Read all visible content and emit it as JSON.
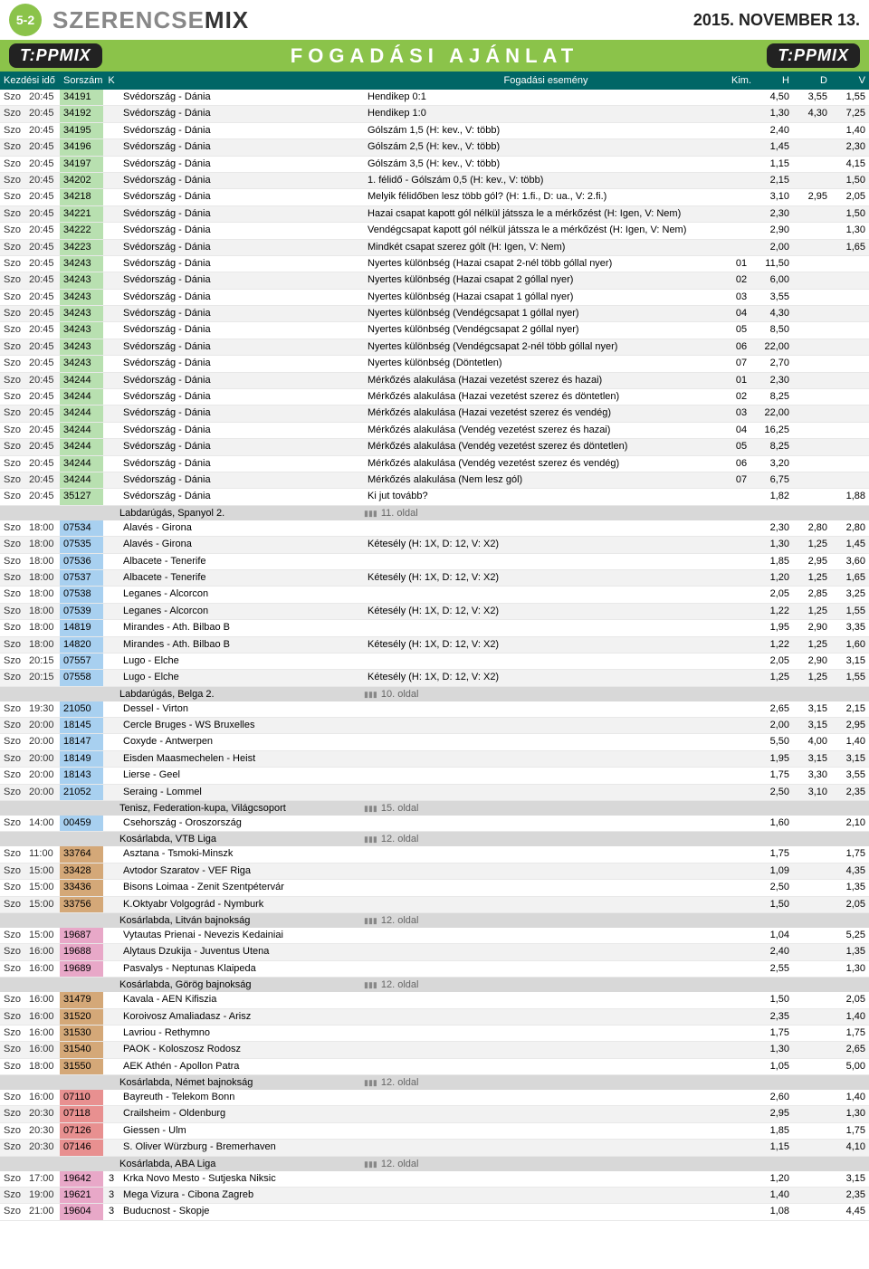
{
  "page_badge": "5-2",
  "logo_sz": "SZERENCSE",
  "logo_mix": "MIX",
  "date": "2015. NOVEMBER 13.",
  "tippmix": "T:PPMIX",
  "banner": "FOGADÁSI AJÁNLAT",
  "hdr": {
    "kezd": "Kezdési idő",
    "sorszam": "Sorszám",
    "k": "K",
    "esemeny": "Fogadási esemény",
    "kim": "Kim.",
    "h": "H",
    "d": "D",
    "v": "V"
  },
  "rows": [
    {
      "t": "d",
      "day": "Szo",
      "time": "20:45",
      "code": "34191",
      "cc": "g",
      "match": "Svédország - Dánia",
      "event": "Hendikep 0:1",
      "kim": "",
      "h": "4,50",
      "dv": "3,55",
      "v": "1,55"
    },
    {
      "t": "d",
      "day": "Szo",
      "time": "20:45",
      "code": "34192",
      "cc": "g",
      "match": "Svédország - Dánia",
      "event": "Hendikep 1:0",
      "kim": "",
      "h": "1,30",
      "dv": "4,30",
      "v": "7,25"
    },
    {
      "t": "d",
      "day": "Szo",
      "time": "20:45",
      "code": "34195",
      "cc": "g",
      "match": "Svédország - Dánia",
      "event": "Gólszám 1,5 (H: kev., V: több)",
      "kim": "",
      "h": "2,40",
      "dv": "",
      "v": "1,40"
    },
    {
      "t": "d",
      "day": "Szo",
      "time": "20:45",
      "code": "34196",
      "cc": "g",
      "match": "Svédország - Dánia",
      "event": "Gólszám 2,5 (H: kev., V: több)",
      "kim": "",
      "h": "1,45",
      "dv": "",
      "v": "2,30"
    },
    {
      "t": "d",
      "day": "Szo",
      "time": "20:45",
      "code": "34197",
      "cc": "g",
      "match": "Svédország - Dánia",
      "event": "Gólszám 3,5 (H: kev., V: több)",
      "kim": "",
      "h": "1,15",
      "dv": "",
      "v": "4,15"
    },
    {
      "t": "d",
      "day": "Szo",
      "time": "20:45",
      "code": "34202",
      "cc": "g",
      "match": "Svédország - Dánia",
      "event": "1. félidő - Gólszám 0,5 (H: kev., V: több)",
      "kim": "",
      "h": "2,15",
      "dv": "",
      "v": "1,50"
    },
    {
      "t": "d",
      "day": "Szo",
      "time": "20:45",
      "code": "34218",
      "cc": "g",
      "match": "Svédország - Dánia",
      "event": "Melyik félidőben lesz több gól? (H: 1.fi., D: ua., V: 2.fi.)",
      "kim": "",
      "h": "3,10",
      "dv": "2,95",
      "v": "2,05"
    },
    {
      "t": "d",
      "day": "Szo",
      "time": "20:45",
      "code": "34221",
      "cc": "g",
      "match": "Svédország - Dánia",
      "event": "Hazai csapat kapott gól nélkül játssza le a mérkőzést (H: Igen, V: Nem)",
      "kim": "",
      "h": "2,30",
      "dv": "",
      "v": "1,50"
    },
    {
      "t": "d",
      "day": "Szo",
      "time": "20:45",
      "code": "34222",
      "cc": "g",
      "match": "Svédország - Dánia",
      "event": "Vendégcsapat kapott gól nélkül játssza le a mérkőzést (H: Igen, V: Nem)",
      "kim": "",
      "h": "2,90",
      "dv": "",
      "v": "1,30"
    },
    {
      "t": "d",
      "day": "Szo",
      "time": "20:45",
      "code": "34223",
      "cc": "g",
      "match": "Svédország - Dánia",
      "event": "Mindkét csapat szerez gólt (H: Igen, V: Nem)",
      "kim": "",
      "h": "2,00",
      "dv": "",
      "v": "1,65"
    },
    {
      "t": "d",
      "day": "Szo",
      "time": "20:45",
      "code": "34243",
      "cc": "g",
      "match": "Svédország - Dánia",
      "event": "Nyertes különbség (Hazai csapat 2-nél több góllal nyer)",
      "kim": "01",
      "h": "11,50",
      "dv": "",
      "v": ""
    },
    {
      "t": "d",
      "day": "Szo",
      "time": "20:45",
      "code": "34243",
      "cc": "g",
      "match": "Svédország - Dánia",
      "event": "Nyertes különbség (Hazai csapat 2 góllal nyer)",
      "kim": "02",
      "h": "6,00",
      "dv": "",
      "v": ""
    },
    {
      "t": "d",
      "day": "Szo",
      "time": "20:45",
      "code": "34243",
      "cc": "g",
      "match": "Svédország - Dánia",
      "event": "Nyertes különbség (Hazai csapat 1 góllal nyer)",
      "kim": "03",
      "h": "3,55",
      "dv": "",
      "v": ""
    },
    {
      "t": "d",
      "day": "Szo",
      "time": "20:45",
      "code": "34243",
      "cc": "g",
      "match": "Svédország - Dánia",
      "event": "Nyertes különbség (Vendégcsapat 1 góllal nyer)",
      "kim": "04",
      "h": "4,30",
      "dv": "",
      "v": ""
    },
    {
      "t": "d",
      "day": "Szo",
      "time": "20:45",
      "code": "34243",
      "cc": "g",
      "match": "Svédország - Dánia",
      "event": "Nyertes különbség (Vendégcsapat 2 góllal nyer)",
      "kim": "05",
      "h": "8,50",
      "dv": "",
      "v": ""
    },
    {
      "t": "d",
      "day": "Szo",
      "time": "20:45",
      "code": "34243",
      "cc": "g",
      "match": "Svédország - Dánia",
      "event": "Nyertes különbség (Vendégcsapat 2-nél több góllal nyer)",
      "kim": "06",
      "h": "22,00",
      "dv": "",
      "v": ""
    },
    {
      "t": "d",
      "day": "Szo",
      "time": "20:45",
      "code": "34243",
      "cc": "g",
      "match": "Svédország - Dánia",
      "event": "Nyertes különbség (Döntetlen)",
      "kim": "07",
      "h": "2,70",
      "dv": "",
      "v": ""
    },
    {
      "t": "d",
      "day": "Szo",
      "time": "20:45",
      "code": "34244",
      "cc": "g",
      "match": "Svédország - Dánia",
      "event": "Mérkőzés alakulása (Hazai vezetést szerez és hazai)",
      "kim": "01",
      "h": "2,30",
      "dv": "",
      "v": ""
    },
    {
      "t": "d",
      "day": "Szo",
      "time": "20:45",
      "code": "34244",
      "cc": "g",
      "match": "Svédország - Dánia",
      "event": "Mérkőzés alakulása (Hazai vezetést szerez és döntetlen)",
      "kim": "02",
      "h": "8,25",
      "dv": "",
      "v": ""
    },
    {
      "t": "d",
      "day": "Szo",
      "time": "20:45",
      "code": "34244",
      "cc": "g",
      "match": "Svédország - Dánia",
      "event": "Mérkőzés alakulása (Hazai vezetést szerez és vendég)",
      "kim": "03",
      "h": "22,00",
      "dv": "",
      "v": ""
    },
    {
      "t": "d",
      "day": "Szo",
      "time": "20:45",
      "code": "34244",
      "cc": "g",
      "match": "Svédország - Dánia",
      "event": "Mérkőzés alakulása (Vendég vezetést szerez és hazai)",
      "kim": "04",
      "h": "16,25",
      "dv": "",
      "v": ""
    },
    {
      "t": "d",
      "day": "Szo",
      "time": "20:45",
      "code": "34244",
      "cc": "g",
      "match": "Svédország - Dánia",
      "event": "Mérkőzés alakulása (Vendég vezetést szerez és döntetlen)",
      "kim": "05",
      "h": "8,25",
      "dv": "",
      "v": ""
    },
    {
      "t": "d",
      "day": "Szo",
      "time": "20:45",
      "code": "34244",
      "cc": "g",
      "match": "Svédország - Dánia",
      "event": "Mérkőzés alakulása (Vendég vezetést szerez és vendég)",
      "kim": "06",
      "h": "3,20",
      "dv": "",
      "v": ""
    },
    {
      "t": "d",
      "day": "Szo",
      "time": "20:45",
      "code": "34244",
      "cc": "g",
      "match": "Svédország - Dánia",
      "event": "Mérkőzés alakulása (Nem lesz gól)",
      "kim": "07",
      "h": "6,75",
      "dv": "",
      "v": ""
    },
    {
      "t": "d",
      "day": "Szo",
      "time": "20:45",
      "code": "35127",
      "cc": "g",
      "match": "Svédország - Dánia",
      "event": "Ki jut tovább?",
      "kim": "",
      "h": "1,82",
      "dv": "",
      "v": "1,88"
    },
    {
      "t": "s",
      "match": "Labdarúgás, Spanyol 2.",
      "event": "11. oldal"
    },
    {
      "t": "d",
      "day": "Szo",
      "time": "18:00",
      "code": "07534",
      "cc": "b",
      "match": "Alavés - Girona",
      "event": "",
      "kim": "",
      "h": "2,30",
      "dv": "2,80",
      "v": "2,80"
    },
    {
      "t": "d",
      "day": "Szo",
      "time": "18:00",
      "code": "07535",
      "cc": "b",
      "match": "Alavés - Girona",
      "event": "Kétesély (H: 1X, D: 12, V: X2)",
      "kim": "",
      "h": "1,30",
      "dv": "1,25",
      "v": "1,45"
    },
    {
      "t": "d",
      "day": "Szo",
      "time": "18:00",
      "code": "07536",
      "cc": "b",
      "match": "Albacete - Tenerife",
      "event": "",
      "kim": "",
      "h": "1,85",
      "dv": "2,95",
      "v": "3,60"
    },
    {
      "t": "d",
      "day": "Szo",
      "time": "18:00",
      "code": "07537",
      "cc": "b",
      "match": "Albacete - Tenerife",
      "event": "Kétesély (H: 1X, D: 12, V: X2)",
      "kim": "",
      "h": "1,20",
      "dv": "1,25",
      "v": "1,65"
    },
    {
      "t": "d",
      "day": "Szo",
      "time": "18:00",
      "code": "07538",
      "cc": "b",
      "match": "Leganes - Alcorcon",
      "event": "",
      "kim": "",
      "h": "2,05",
      "dv": "2,85",
      "v": "3,25"
    },
    {
      "t": "d",
      "day": "Szo",
      "time": "18:00",
      "code": "07539",
      "cc": "b",
      "match": "Leganes - Alcorcon",
      "event": "Kétesély (H: 1X, D: 12, V: X2)",
      "kim": "",
      "h": "1,22",
      "dv": "1,25",
      "v": "1,55"
    },
    {
      "t": "d",
      "day": "Szo",
      "time": "18:00",
      "code": "14819",
      "cc": "b",
      "match": "Mirandes - Ath. Bilbao B",
      "event": "",
      "kim": "",
      "h": "1,95",
      "dv": "2,90",
      "v": "3,35"
    },
    {
      "t": "d",
      "day": "Szo",
      "time": "18:00",
      "code": "14820",
      "cc": "b",
      "match": "Mirandes - Ath. Bilbao B",
      "event": "Kétesély (H: 1X, D: 12, V: X2)",
      "kim": "",
      "h": "1,22",
      "dv": "1,25",
      "v": "1,60"
    },
    {
      "t": "d",
      "day": "Szo",
      "time": "20:15",
      "code": "07557",
      "cc": "b",
      "match": "Lugo - Elche",
      "event": "",
      "kim": "",
      "h": "2,05",
      "dv": "2,90",
      "v": "3,15"
    },
    {
      "t": "d",
      "day": "Szo",
      "time": "20:15",
      "code": "07558",
      "cc": "b",
      "match": "Lugo - Elche",
      "event": "Kétesély (H: 1X, D: 12, V: X2)",
      "kim": "",
      "h": "1,25",
      "dv": "1,25",
      "v": "1,55"
    },
    {
      "t": "s",
      "match": "Labdarúgás, Belga 2.",
      "event": "10. oldal"
    },
    {
      "t": "d",
      "day": "Szo",
      "time": "19:30",
      "code": "21050",
      "cc": "b",
      "match": "Dessel - Virton",
      "event": "",
      "kim": "",
      "h": "2,65",
      "dv": "3,15",
      "v": "2,15"
    },
    {
      "t": "d",
      "day": "Szo",
      "time": "20:00",
      "code": "18145",
      "cc": "b",
      "match": "Cercle Bruges - WS Bruxelles",
      "event": "",
      "kim": "",
      "h": "2,00",
      "dv": "3,15",
      "v": "2,95"
    },
    {
      "t": "d",
      "day": "Szo",
      "time": "20:00",
      "code": "18147",
      "cc": "b",
      "match": "Coxyde - Antwerpen",
      "event": "",
      "kim": "",
      "h": "5,50",
      "dv": "4,00",
      "v": "1,40"
    },
    {
      "t": "d",
      "day": "Szo",
      "time": "20:00",
      "code": "18149",
      "cc": "b",
      "match": "Eisden Maasmechelen - Heist",
      "event": "",
      "kim": "",
      "h": "1,95",
      "dv": "3,15",
      "v": "3,15"
    },
    {
      "t": "d",
      "day": "Szo",
      "time": "20:00",
      "code": "18143",
      "cc": "b",
      "match": "Lierse - Geel",
      "event": "",
      "kim": "",
      "h": "1,75",
      "dv": "3,30",
      "v": "3,55"
    },
    {
      "t": "d",
      "day": "Szo",
      "time": "20:00",
      "code": "21052",
      "cc": "b",
      "match": "Seraing - Lommel",
      "event": "",
      "kim": "",
      "h": "2,50",
      "dv": "3,10",
      "v": "2,35"
    },
    {
      "t": "s",
      "match": "Tenisz, Federation-kupa, Világcsoport",
      "event": "15. oldal"
    },
    {
      "t": "d",
      "day": "Szo",
      "time": "14:00",
      "code": "00459",
      "cc": "b",
      "match": "Csehország - Oroszország",
      "event": "",
      "kim": "",
      "h": "1,60",
      "dv": "",
      "v": "2,10"
    },
    {
      "t": "s",
      "match": "Kosárlabda, VTB Liga",
      "event": "12. oldal"
    },
    {
      "t": "d",
      "day": "Szo",
      "time": "11:00",
      "code": "33764",
      "cc": "br",
      "match": "Asztana - Tsmoki-Minszk",
      "event": "",
      "kim": "",
      "h": "1,75",
      "dv": "",
      "v": "1,75"
    },
    {
      "t": "d",
      "day": "Szo",
      "time": "15:00",
      "code": "33428",
      "cc": "br",
      "match": "Avtodor Szaratov - VEF Riga",
      "event": "",
      "kim": "",
      "h": "1,09",
      "dv": "",
      "v": "4,35"
    },
    {
      "t": "d",
      "day": "Szo",
      "time": "15:00",
      "code": "33436",
      "cc": "br",
      "match": "Bisons Loimaa - Zenit Szentpétervár",
      "event": "",
      "kim": "",
      "h": "2,50",
      "dv": "",
      "v": "1,35"
    },
    {
      "t": "d",
      "day": "Szo",
      "time": "15:00",
      "code": "33756",
      "cc": "br",
      "match": "K.Oktyabr Volgográd - Nymburk",
      "event": "",
      "kim": "",
      "h": "1,50",
      "dv": "",
      "v": "2,05"
    },
    {
      "t": "s",
      "match": "Kosárlabda, Litván bajnokság",
      "event": "12. oldal"
    },
    {
      "t": "d",
      "day": "Szo",
      "time": "15:00",
      "code": "19687",
      "cc": "p",
      "match": "Vytautas Prienai - Nevezis Kedainiai",
      "event": "",
      "kim": "",
      "h": "1,04",
      "dv": "",
      "v": "5,25"
    },
    {
      "t": "d",
      "day": "Szo",
      "time": "16:00",
      "code": "19688",
      "cc": "p",
      "match": "Alytaus Dzukija - Juventus Utena",
      "event": "",
      "kim": "",
      "h": "2,40",
      "dv": "",
      "v": "1,35"
    },
    {
      "t": "d",
      "day": "Szo",
      "time": "16:00",
      "code": "19689",
      "cc": "p",
      "match": "Pasvalys - Neptunas Klaipeda",
      "event": "",
      "kim": "",
      "h": "2,55",
      "dv": "",
      "v": "1,30"
    },
    {
      "t": "s",
      "match": "Kosárlabda, Görög bajnokság",
      "event": "12. oldal"
    },
    {
      "t": "d",
      "day": "Szo",
      "time": "16:00",
      "code": "31479",
      "cc": "br",
      "match": "Kavala - AEN Kifiszia",
      "event": "",
      "kim": "",
      "h": "1,50",
      "dv": "",
      "v": "2,05"
    },
    {
      "t": "d",
      "day": "Szo",
      "time": "16:00",
      "code": "31520",
      "cc": "br",
      "match": "Koroivosz Amaliadasz - Arisz",
      "event": "",
      "kim": "",
      "h": "2,35",
      "dv": "",
      "v": "1,40"
    },
    {
      "t": "d",
      "day": "Szo",
      "time": "16:00",
      "code": "31530",
      "cc": "br",
      "match": "Lavriou - Rethymno",
      "event": "",
      "kim": "",
      "h": "1,75",
      "dv": "",
      "v": "1,75"
    },
    {
      "t": "d",
      "day": "Szo",
      "time": "16:00",
      "code": "31540",
      "cc": "br",
      "match": "PAOK - Koloszosz Rodosz",
      "event": "",
      "kim": "",
      "h": "1,30",
      "dv": "",
      "v": "2,65"
    },
    {
      "t": "d",
      "day": "Szo",
      "time": "18:00",
      "code": "31550",
      "cc": "br",
      "match": "AEK Athén - Apollon Patra",
      "event": "",
      "kim": "",
      "h": "1,05",
      "dv": "",
      "v": "5,00"
    },
    {
      "t": "s",
      "match": "Kosárlabda, Német bajnokság",
      "event": "12. oldal"
    },
    {
      "t": "d",
      "day": "Szo",
      "time": "16:00",
      "code": "07110",
      "cc": "r",
      "match": "Bayreuth - Telekom Bonn",
      "event": "",
      "kim": "",
      "h": "2,60",
      "dv": "",
      "v": "1,40"
    },
    {
      "t": "d",
      "day": "Szo",
      "time": "20:30",
      "code": "07118",
      "cc": "r",
      "match": "Crailsheim - Oldenburg",
      "event": "",
      "kim": "",
      "h": "2,95",
      "dv": "",
      "v": "1,30"
    },
    {
      "t": "d",
      "day": "Szo",
      "time": "20:30",
      "code": "07126",
      "cc": "r",
      "match": "Giessen - Ulm",
      "event": "",
      "kim": "",
      "h": "1,85",
      "dv": "",
      "v": "1,75"
    },
    {
      "t": "d",
      "day": "Szo",
      "time": "20:30",
      "code": "07146",
      "cc": "r",
      "match": "S. Oliver Würzburg - Bremerhaven",
      "event": "",
      "kim": "",
      "h": "1,15",
      "dv": "",
      "v": "4,10"
    },
    {
      "t": "s",
      "match": "Kosárlabda, ABA Liga",
      "event": "12. oldal"
    },
    {
      "t": "d",
      "day": "Szo",
      "time": "17:00",
      "code": "19642",
      "cc": "p",
      "k": "3",
      "match": "Krka Novo Mesto - Sutjeska Niksic",
      "event": "",
      "kim": "",
      "h": "1,20",
      "dv": "",
      "v": "3,15"
    },
    {
      "t": "d",
      "day": "Szo",
      "time": "19:00",
      "code": "19621",
      "cc": "p",
      "k": "3",
      "match": "Mega Vizura - Cibona Zagreb",
      "event": "",
      "kim": "",
      "h": "1,40",
      "dv": "",
      "v": "2,35"
    },
    {
      "t": "d",
      "day": "Szo",
      "time": "21:00",
      "code": "19604",
      "cc": "p",
      "k": "3",
      "match": "Buducnost - Skopje",
      "event": "",
      "kim": "",
      "h": "1,08",
      "dv": "",
      "v": "4,45"
    }
  ]
}
